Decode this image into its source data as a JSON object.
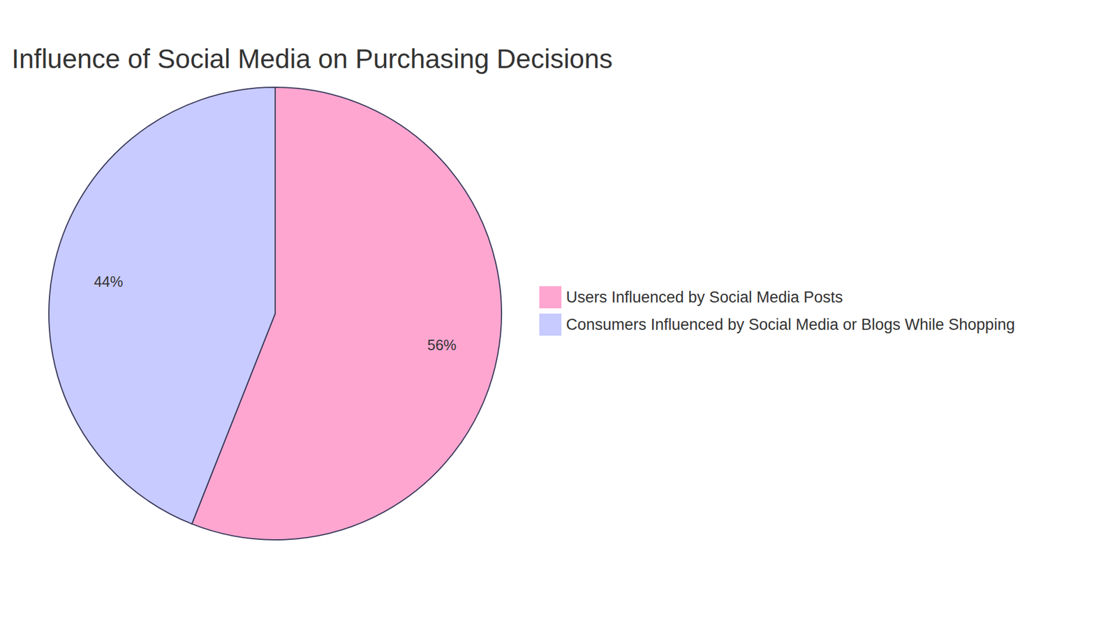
{
  "chart_data": {
    "type": "pie",
    "title": "Influence of Social Media on Purchasing Decisions",
    "categories": [
      "Users Influenced by Social Media Posts",
      "Consumers Influenced by Social Media or Blogs While Shopping"
    ],
    "values": [
      56,
      44
    ],
    "value_labels": [
      "56%",
      "44%"
    ],
    "colors": [
      "#ffa6d0",
      "#c8cbff"
    ],
    "data_labels": true,
    "legend": "right"
  }
}
